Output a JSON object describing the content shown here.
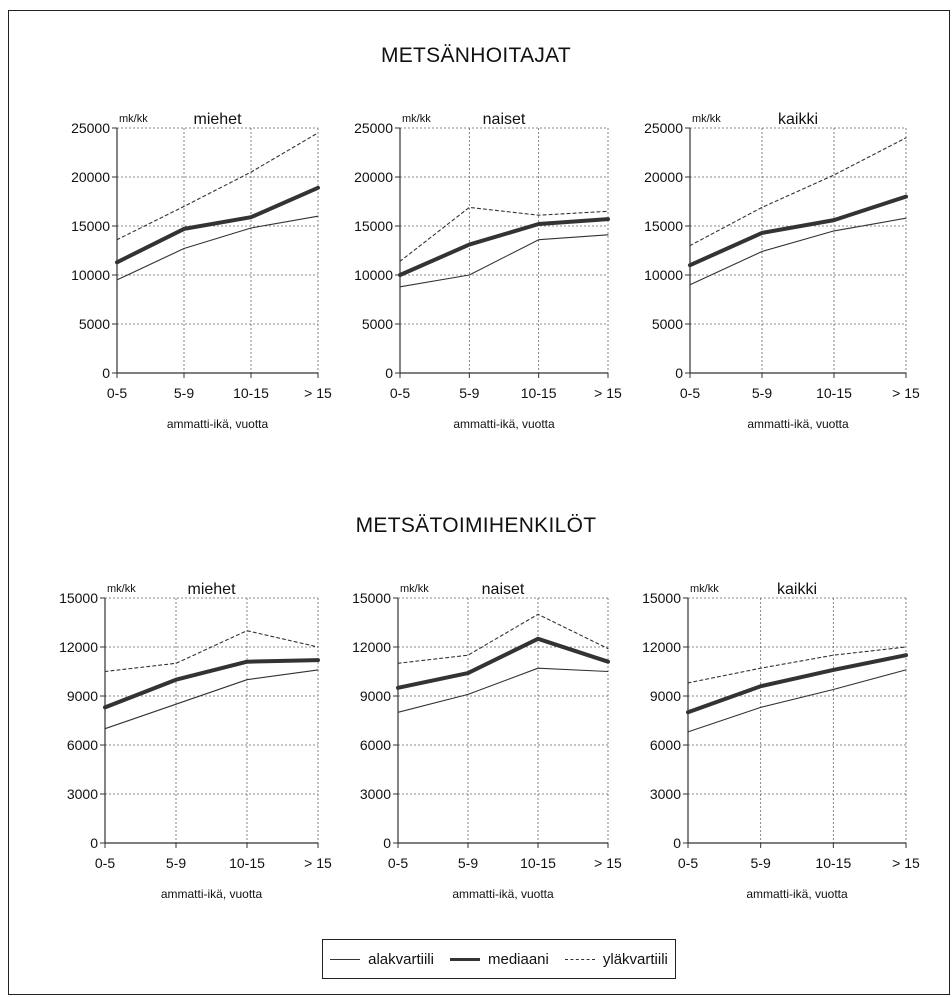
{
  "section_titles": [
    "METSÄNHOITAJAT",
    "METSÄTOIMIHENKILÖT"
  ],
  "legend": {
    "lower_label": "alakvartiili",
    "median_label": "mediaani",
    "upper_label": "yläkvartiili"
  },
  "colors": {
    "line": "#333333",
    "grid": "#666666",
    "frame": "#222222"
  },
  "chart_data": [
    {
      "type": "line",
      "group": "METSÄNHOITAJAT",
      "title": "miehet",
      "unit_label": "mk/kk",
      "xlabel": "ammatti-ikä, vuotta",
      "categories": [
        "0-5",
        "5-9",
        "10-15",
        "> 15"
      ],
      "ylim": [
        0,
        25000
      ],
      "yticks": [
        0,
        5000,
        10000,
        15000,
        20000,
        25000
      ],
      "series": [
        {
          "name": "alakvartiili",
          "values": [
            9500,
            12700,
            14800,
            16000
          ]
        },
        {
          "name": "mediaani",
          "values": [
            11300,
            14700,
            15900,
            18900
          ]
        },
        {
          "name": "yläkvartiili",
          "values": [
            13600,
            17000,
            20500,
            24500
          ]
        }
      ]
    },
    {
      "type": "line",
      "group": "METSÄNHOITAJAT",
      "title": "naiset",
      "unit_label": "mk/kk",
      "xlabel": "ammatti-ikä, vuotta",
      "categories": [
        "0-5",
        "5-9",
        "10-15",
        "> 15"
      ],
      "ylim": [
        0,
        25000
      ],
      "yticks": [
        0,
        5000,
        10000,
        15000,
        20000,
        25000
      ],
      "series": [
        {
          "name": "alakvartiili",
          "values": [
            8800,
            10000,
            13600,
            14100
          ]
        },
        {
          "name": "mediaani",
          "values": [
            10000,
            13100,
            15200,
            15700
          ]
        },
        {
          "name": "yläkvartiili",
          "values": [
            11400,
            16900,
            16100,
            16500
          ]
        }
      ]
    },
    {
      "type": "line",
      "group": "METSÄNHOITAJAT",
      "title": "kaikki",
      "unit_label": "mk/kk",
      "xlabel": "ammatti-ikä, vuotta",
      "categories": [
        "0-5",
        "5-9",
        "10-15",
        "> 15"
      ],
      "ylim": [
        0,
        25000
      ],
      "yticks": [
        0,
        5000,
        10000,
        15000,
        20000,
        25000
      ],
      "series": [
        {
          "name": "alakvartiili",
          "values": [
            9000,
            12400,
            14500,
            15800
          ]
        },
        {
          "name": "mediaani",
          "values": [
            11000,
            14300,
            15600,
            18000
          ]
        },
        {
          "name": "yläkvartiili",
          "values": [
            13000,
            16900,
            20200,
            24000
          ]
        }
      ]
    },
    {
      "type": "line",
      "group": "METSÄTOIMIHENKILÖT",
      "title": "miehet",
      "unit_label": "mk/kk",
      "xlabel": "ammatti-ikä, vuotta",
      "categories": [
        "0-5",
        "5-9",
        "10-15",
        "> 15"
      ],
      "ylim": [
        0,
        15000
      ],
      "yticks": [
        0,
        3000,
        6000,
        9000,
        12000,
        15000
      ],
      "series": [
        {
          "name": "alakvartiili",
          "values": [
            7000,
            8500,
            10000,
            10600
          ]
        },
        {
          "name": "mediaani",
          "values": [
            8300,
            10000,
            11100,
            11200
          ]
        },
        {
          "name": "yläkvartiili",
          "values": [
            10500,
            11000,
            13000,
            12000
          ]
        }
      ]
    },
    {
      "type": "line",
      "group": "METSÄTOIMIHENKILÖT",
      "title": "naiset",
      "unit_label": "mk/kk",
      "xlabel": "ammatti-ikä, vuotta",
      "categories": [
        "0-5",
        "5-9",
        "10-15",
        "> 15"
      ],
      "ylim": [
        0,
        15000
      ],
      "yticks": [
        0,
        3000,
        6000,
        9000,
        12000,
        15000
      ],
      "series": [
        {
          "name": "alakvartiili",
          "values": [
            8000,
            9100,
            10700,
            10500
          ]
        },
        {
          "name": "mediaani",
          "values": [
            9500,
            10400,
            12500,
            11100
          ]
        },
        {
          "name": "yläkvartiili",
          "values": [
            11000,
            11500,
            14000,
            11900
          ]
        }
      ]
    },
    {
      "type": "line",
      "group": "METSÄTOIMIHENKILÖT",
      "title": "kaikki",
      "unit_label": "mk/kk",
      "xlabel": "ammatti-ikä, vuotta",
      "categories": [
        "0-5",
        "5-9",
        "10-15",
        "> 15"
      ],
      "ylim": [
        0,
        15000
      ],
      "yticks": [
        0,
        3000,
        6000,
        9000,
        12000,
        15000
      ],
      "series": [
        {
          "name": "alakvartiili",
          "values": [
            6800,
            8300,
            9400,
            10600
          ]
        },
        {
          "name": "mediaani",
          "values": [
            8000,
            9600,
            10600,
            11500
          ]
        },
        {
          "name": "yläkvartiili",
          "values": [
            9800,
            10700,
            11500,
            12000
          ]
        }
      ]
    }
  ]
}
